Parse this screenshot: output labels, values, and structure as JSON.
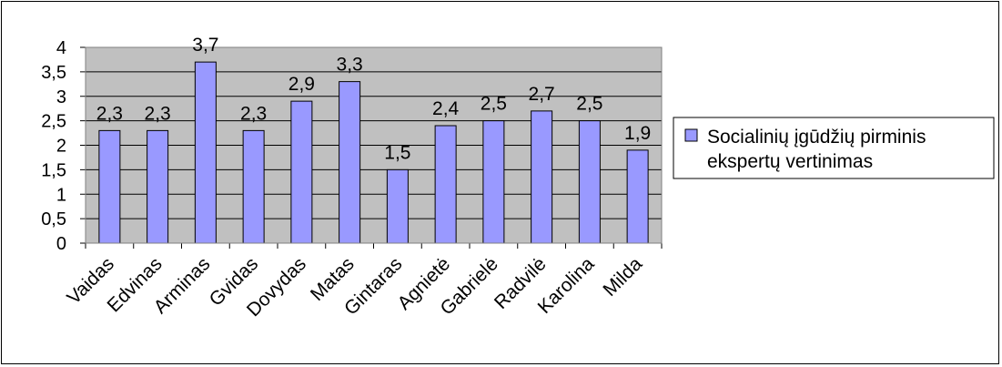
{
  "chart_data": {
    "type": "bar",
    "categories": [
      "Vaidas",
      "Edvinas",
      "Arminas",
      "Gvidas",
      "Dovydas",
      "Matas",
      "Gintaras",
      "Agnietė",
      "Gabrielė",
      "Radvilė",
      "Karolina",
      "Milda"
    ],
    "series": [
      {
        "name": "Socialinių įgūdžių pirminis ekspertų vertinimas",
        "values": [
          2.3,
          2.3,
          3.7,
          2.3,
          2.9,
          3.3,
          1.5,
          2.4,
          2.5,
          2.7,
          2.5,
          1.9
        ],
        "value_labels": [
          "2,3",
          "2,3",
          "3,7",
          "2,3",
          "2,9",
          "3,3",
          "1,5",
          "2,4",
          "2,5",
          "2,7",
          "2,5",
          "1,9"
        ]
      }
    ],
    "yticks": [
      "0",
      "0,5",
      "1",
      "1,5",
      "2",
      "2,5",
      "3",
      "3,5",
      "4"
    ],
    "ylim": [
      0,
      4
    ],
    "ystep": 0.5,
    "grid": true,
    "legend": {
      "position": "right",
      "line1": "Socialinių įgūdžių pirminis",
      "line2": "ekspertų vertinimas"
    },
    "colors": {
      "plot_bg": "#c0c0c0",
      "bar_fill": "#9999ff",
      "bar_stroke": "#000000",
      "grid": "#000000"
    }
  }
}
